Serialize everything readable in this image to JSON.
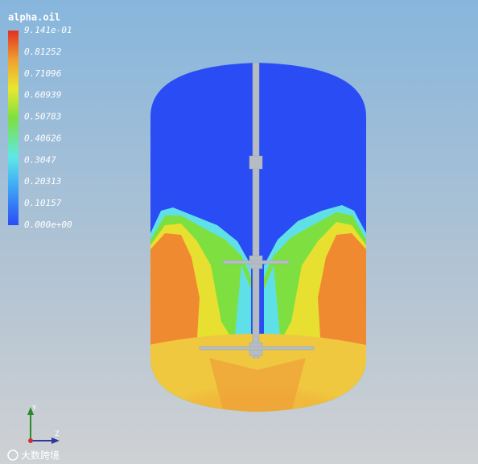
{
  "legend": {
    "title": "alpha.oil",
    "labels": [
      "9.141e-01",
      "0.81252",
      "0.71096",
      "0.60939",
      "0.50783",
      "0.40626",
      "0.3047",
      "0.20313",
      "0.10157",
      "0.000e+00"
    ]
  },
  "axes": {
    "y": "Y",
    "z": "Z"
  },
  "watermark": "大数跨境"
}
